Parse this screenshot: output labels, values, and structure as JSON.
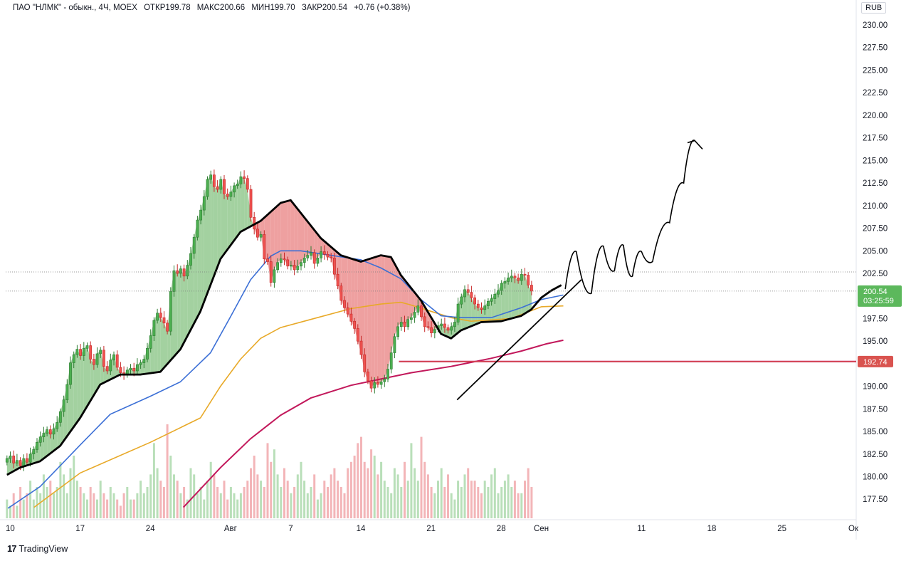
{
  "header": {
    "symbol": "ПАО \"НЛМК\" - обыкн., 4Ч, MOEX",
    "open": "ОТКР199.78",
    "high": "МАКС200.66",
    "low": "МИН199.70",
    "close": "ЗАКР200.54",
    "change": "+0.76 (+0.38%)"
  },
  "currency": "RUB",
  "brand": "TradingView",
  "price_badge": {
    "price": "200.54",
    "timer": "03:25:59",
    "color": "#5cb85c"
  },
  "level_badge": {
    "price": "192.74",
    "color": "#d9534f"
  },
  "colors": {
    "up": "#4caf50",
    "down": "#ef5350",
    "ma_fast": "#000000",
    "ma_blue": "#3b6fd6",
    "ma_orange": "#e8a928",
    "ma_pink": "#c2185b",
    "vol_up": "#b9dfb9",
    "vol_down": "#f3b5b8",
    "fill_up": "#93c98f",
    "fill_down": "#eb8f8f"
  },
  "chart_data": {
    "type": "candlestick",
    "y_ticks": [
      "230.00",
      "227.50",
      "225.00",
      "222.50",
      "220.00",
      "217.50",
      "215.00",
      "212.50",
      "210.00",
      "207.50",
      "205.00",
      "202.50",
      "200.00",
      "197.50",
      "195.00",
      "192.50",
      "190.00",
      "187.50",
      "185.00",
      "182.50",
      "180.00",
      "177.50"
    ],
    "ylim": [
      176.5,
      231.3
    ],
    "x_ticks": [
      "10",
      "17",
      "24",
      "Авг",
      "7",
      "14",
      "21",
      "28",
      "Сен",
      "11",
      "18",
      "25",
      "Ок"
    ],
    "bars_per_day": 3,
    "start_day": 9.7,
    "axis_days": {
      "Авг": 32,
      "Сен": 63,
      "Ок": 93
    },
    "close_price": 200.54,
    "level": 192.74,
    "close_series": [
      182.0,
      182.3,
      181.5,
      181.8,
      181.2,
      182.0,
      181.6,
      182.5,
      183.0,
      183.8,
      184.4,
      184.8,
      185.2,
      184.7,
      185.3,
      186.0,
      187.2,
      188.5,
      190.2,
      192.6,
      193.5,
      194.1,
      193.4,
      194.2,
      194.5,
      193.0,
      192.4,
      193.6,
      194.0,
      192.2,
      191.7,
      192.9,
      193.5,
      192.1,
      191.5,
      191.3,
      191.8,
      192.0,
      191.7,
      192.4,
      192.6,
      193.0,
      194.2,
      195.6,
      197.3,
      198.1,
      197.6,
      197.0,
      196.1,
      200.5,
      202.8,
      202.5,
      203.0,
      202.2,
      203.4,
      204.7,
      206.5,
      208.4,
      209.5,
      211.0,
      212.9,
      213.4,
      212.1,
      211.8,
      212.9,
      211.3,
      211.0,
      211.5,
      212.2,
      212.4,
      213.2,
      213.0,
      211.8,
      208.7,
      207.4,
      206.5,
      206.8,
      204.1,
      203.8,
      201.5,
      202.9,
      203.7,
      204.1,
      204.0,
      203.3,
      203.4,
      202.9,
      203.3,
      203.7,
      204.2,
      204.5,
      204.8,
      203.6,
      204.2,
      204.9,
      204.6,
      204.3,
      204.2,
      202.4,
      201.1,
      199.5,
      198.7,
      198.0,
      197.2,
      196.4,
      195.0,
      193.5,
      191.6,
      190.6,
      189.8,
      190.4,
      190.2,
      190.5,
      190.8,
      191.9,
      193.7,
      195.5,
      196.6,
      197.1,
      196.6,
      197.4,
      197.6,
      198.2,
      198.9,
      197.7,
      196.6,
      196.5,
      195.9,
      196.3,
      196.7,
      196.9,
      196.5,
      196.2,
      196.6,
      197.1,
      199.1,
      199.9,
      200.7,
      200.4,
      199.8,
      199.1,
      198.7,
      198.5,
      198.9,
      199.4,
      199.7,
      200.2,
      200.6,
      201.4,
      201.6,
      202.0,
      202.2,
      202.0,
      201.7,
      202.4,
      202.3,
      201.2,
      200.54
    ],
    "volume_series": [
      3,
      2,
      4,
      2,
      5,
      3,
      4,
      6,
      3,
      5,
      4,
      7,
      5,
      6,
      4,
      5,
      9,
      7,
      4,
      8,
      10,
      6,
      5,
      4,
      3,
      5,
      4,
      3,
      6,
      4,
      3,
      5,
      4,
      3,
      2,
      4,
      5,
      3,
      3,
      4,
      6,
      4,
      5,
      7,
      12,
      8,
      6,
      5,
      15,
      10,
      7,
      6,
      4,
      5,
      3,
      8,
      7,
      4,
      5,
      3,
      6,
      9,
      7,
      5,
      4,
      6,
      3,
      5,
      4,
      3,
      4,
      5,
      6,
      8,
      10,
      7,
      6,
      5,
      12,
      9,
      11,
      7,
      5,
      8,
      6,
      4,
      5,
      7,
      9,
      6,
      4,
      5,
      7,
      3,
      4,
      6,
      5,
      7,
      8,
      6,
      5,
      4,
      8,
      9,
      10,
      12,
      13,
      9,
      8,
      11,
      10,
      7,
      9,
      6,
      5,
      4,
      8,
      7,
      5,
      9,
      6,
      12,
      8,
      6,
      13,
      9,
      7,
      5,
      4,
      6,
      8,
      5,
      7,
      4,
      3,
      6,
      5,
      7,
      8,
      6,
      6,
      5,
      4,
      6,
      5,
      7,
      8,
      4,
      5,
      6,
      7,
      5,
      6,
      4,
      4,
      6,
      8,
      5
    ],
    "ma_orange_points": [
      [
        12.4,
        176.6
      ],
      [
        17,
        180.4
      ],
      [
        24,
        183.8
      ],
      [
        29,
        186.5
      ],
      [
        31,
        190.0
      ],
      [
        33,
        193.0
      ],
      [
        35,
        195.3
      ],
      [
        37,
        196.5
      ],
      [
        40,
        197.4
      ],
      [
        44,
        198.6
      ],
      [
        47,
        199.1
      ],
      [
        49,
        199.3
      ],
      [
        50,
        199.0
      ],
      [
        52,
        198.3
      ],
      [
        54,
        197.6
      ],
      [
        56,
        197.2
      ],
      [
        60,
        197.5
      ],
      [
        63,
        198.8
      ],
      [
        65.2,
        198.9
      ]
    ],
    "ma_blue_points": [
      [
        9.8,
        176.5
      ],
      [
        13,
        178.9
      ],
      [
        17,
        183.5
      ],
      [
        20,
        186.9
      ],
      [
        24,
        188.9
      ],
      [
        27,
        190.5
      ],
      [
        30,
        193.7
      ],
      [
        32,
        197.7
      ],
      [
        34,
        201.8
      ],
      [
        36,
        204.4
      ],
      [
        37,
        205.0
      ],
      [
        39,
        205.0
      ],
      [
        42,
        204.5
      ],
      [
        45,
        204.0
      ],
      [
        47,
        203.1
      ],
      [
        49,
        201.9
      ],
      [
        51,
        199.6
      ],
      [
        53,
        197.8
      ],
      [
        55,
        197.6
      ],
      [
        58,
        197.6
      ],
      [
        61,
        198.7
      ],
      [
        63,
        199.6
      ],
      [
        65.2,
        200.1
      ]
    ],
    "ma_pink_points": [
      [
        27.3,
        176.6
      ],
      [
        31,
        181.0
      ],
      [
        34,
        184.2
      ],
      [
        37,
        186.8
      ],
      [
        40,
        188.7
      ],
      [
        44,
        190.1
      ],
      [
        47,
        190.8
      ],
      [
        50,
        191.5
      ],
      [
        54,
        192.2
      ],
      [
        58,
        193.1
      ],
      [
        61,
        193.9
      ],
      [
        63.5,
        194.7
      ],
      [
        65.2,
        195.1
      ]
    ],
    "ma_fast_points": [
      [
        9.7,
        180.2
      ],
      [
        11,
        181.0
      ],
      [
        13,
        181.7
      ],
      [
        15,
        183.4
      ],
      [
        17,
        186.5
      ],
      [
        19,
        190.2
      ],
      [
        21,
        191.3
      ],
      [
        23,
        191.3
      ],
      [
        25,
        191.6
      ],
      [
        27,
        194.1
      ],
      [
        29,
        198.3
      ],
      [
        31,
        204.1
      ],
      [
        33,
        207.1
      ],
      [
        35,
        208.3
      ],
      [
        37,
        210.3
      ],
      [
        38,
        210.6
      ],
      [
        39,
        209.2
      ],
      [
        41,
        206.4
      ],
      [
        43,
        204.5
      ],
      [
        45,
        203.8
      ],
      [
        47,
        204.5
      ],
      [
        48,
        204.3
      ],
      [
        49,
        202.3
      ],
      [
        51,
        199.5
      ],
      [
        53,
        195.8
      ],
      [
        54,
        195.3
      ],
      [
        55,
        196.2
      ],
      [
        57,
        197.1
      ],
      [
        59,
        197.2
      ],
      [
        61,
        197.8
      ],
      [
        62,
        198.5
      ],
      [
        63,
        199.8
      ],
      [
        64,
        200.6
      ],
      [
        65,
        201.2
      ]
    ],
    "trendline": [
      [
        54.6,
        188.5
      ],
      [
        67,
        201.8
      ]
    ],
    "level_line_start_day": 48.8,
    "projection": [
      [
        65.4,
        200.8
      ],
      [
        66.5,
        204.9
      ],
      [
        68.0,
        200.3
      ],
      [
        69.2,
        205.5
      ],
      [
        70.3,
        202.8
      ],
      [
        71.2,
        205.6
      ],
      [
        72.1,
        202.2
      ],
      [
        73.0,
        204.9
      ],
      [
        74.1,
        203.8
      ],
      [
        75.8,
        208.1
      ],
      [
        77.2,
        212.5
      ],
      [
        78.3,
        217.2
      ]
    ]
  }
}
